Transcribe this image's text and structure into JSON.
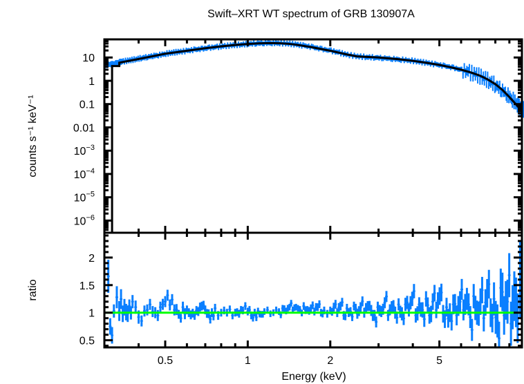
{
  "chart_data": [
    {
      "type": "line",
      "panel": "top",
      "title": "Swift–XRT WT spectrum of GRB 130907A",
      "xlabel": "",
      "ylabel": "counts s⁻¹ keV⁻¹",
      "xscale": "log",
      "yscale": "log",
      "xlim": [
        0.3,
        10
      ],
      "ylim": [
        3e-07,
        60
      ],
      "yticks": [
        {
          "value": 10,
          "label": "10"
        },
        {
          "value": 1,
          "label": "1"
        },
        {
          "value": 0.1,
          "label": "0.1"
        },
        {
          "value": 0.01,
          "label": "0.01"
        },
        {
          "value": 0.001,
          "label": "10−3"
        },
        {
          "value": 0.0001,
          "label": "10−4"
        },
        {
          "value": 1e-05,
          "label": "10−5"
        },
        {
          "value": 1e-06,
          "label": "10−6"
        }
      ],
      "series": [
        {
          "name": "data",
          "color": "#0a7fff",
          "style": "error-bars",
          "points": [
            [
              0.3,
              4.6
            ],
            [
              0.31,
              5.0
            ],
            [
              0.32,
              5.2
            ],
            [
              0.33,
              5.6
            ],
            [
              0.34,
              6.3
            ],
            [
              0.35,
              6.8
            ],
            [
              0.37,
              7.6
            ],
            [
              0.39,
              8.5
            ],
            [
              0.41,
              9.6
            ],
            [
              0.43,
              10.5
            ],
            [
              0.45,
              11.8
            ],
            [
              0.47,
              12.6
            ],
            [
              0.5,
              14.5
            ],
            [
              0.53,
              16.3
            ],
            [
              0.56,
              17.5
            ],
            [
              0.6,
              19.5
            ],
            [
              0.64,
              21.8
            ],
            [
              0.68,
              23.5
            ],
            [
              0.72,
              26
            ],
            [
              0.77,
              28.5
            ],
            [
              0.82,
              31
            ],
            [
              0.88,
              34
            ],
            [
              0.94,
              36
            ],
            [
              1.0,
              38
            ],
            [
              1.07,
              40.5
            ],
            [
              1.14,
              41.5
            ],
            [
              1.22,
              42
            ],
            [
              1.3,
              41.5
            ],
            [
              1.4,
              39.5
            ],
            [
              1.5,
              36
            ],
            [
              1.6,
              32
            ],
            [
              1.72,
              27.5
            ],
            [
              1.85,
              23
            ],
            [
              2.0,
              19.5
            ],
            [
              2.15,
              16
            ],
            [
              2.3,
              13
            ],
            [
              2.5,
              11.2
            ],
            [
              2.7,
              10.4
            ],
            [
              2.9,
              10
            ],
            [
              3.1,
              9.5
            ],
            [
              3.35,
              8.8
            ],
            [
              3.6,
              8.1
            ],
            [
              3.9,
              7.4
            ],
            [
              4.2,
              6.6
            ],
            [
              4.5,
              5.8
            ],
            [
              4.85,
              5.0
            ],
            [
              5.2,
              4.3
            ],
            [
              5.6,
              3.6
            ],
            [
              6.0,
              2.9
            ],
            [
              6.4,
              2.3
            ],
            [
              6.8,
              1.8
            ],
            [
              7.2,
              1.35
            ],
            [
              7.6,
              0.95
            ],
            [
              8.0,
              0.65
            ],
            [
              8.4,
              0.42
            ],
            [
              8.8,
              0.26
            ],
            [
              9.2,
              0.16
            ],
            [
              9.6,
              0.095
            ],
            [
              9.9,
              0.06
            ]
          ]
        },
        {
          "name": "model",
          "color": "#000000",
          "style": "step-line",
          "points": [
            [
              0.32,
              3e-07
            ],
            [
              0.32,
              4.3
            ],
            [
              0.34,
              4.3
            ],
            [
              0.34,
              6.0
            ],
            [
              0.4,
              8.6
            ],
            [
              0.5,
              14.5
            ],
            [
              0.6,
              19.5
            ],
            [
              0.7,
              25
            ],
            [
              0.8,
              30
            ],
            [
              0.9,
              34.5
            ],
            [
              1.0,
              38
            ],
            [
              1.1,
              40.5
            ],
            [
              1.2,
              41.5
            ],
            [
              1.3,
              41
            ],
            [
              1.4,
              39
            ],
            [
              1.5,
              35.5
            ],
            [
              1.7,
              28
            ],
            [
              2.0,
              19.5
            ],
            [
              2.3,
              13.5
            ],
            [
              2.5,
              11.2
            ],
            [
              3.0,
              10
            ],
            [
              3.5,
              8.6
            ],
            [
              4.0,
              7.2
            ],
            [
              4.5,
              5.9
            ],
            [
              5.0,
              4.8
            ],
            [
              5.5,
              3.8
            ],
            [
              6.0,
              3.0
            ],
            [
              6.5,
              2.3
            ],
            [
              7.0,
              1.7
            ],
            [
              7.5,
              1.15
            ],
            [
              8.0,
              0.72
            ],
            [
              8.5,
              0.4
            ],
            [
              9.0,
              0.2
            ],
            [
              9.5,
              0.1
            ],
            [
              10.0,
              0.05
            ]
          ]
        }
      ]
    },
    {
      "type": "scatter",
      "panel": "bottom",
      "xlabel": "Energy (keV)",
      "ylabel": "ratio",
      "xscale": "log",
      "yscale": "linear",
      "xlim": [
        0.3,
        10
      ],
      "ylim": [
        0.37,
        2.45
      ],
      "xticks": [
        {
          "value": 0.5,
          "label": "0.5"
        },
        {
          "value": 1,
          "label": "1"
        },
        {
          "value": 2,
          "label": "2"
        },
        {
          "value": 5,
          "label": "5"
        }
      ],
      "yticks": [
        {
          "value": 2,
          "label": "2"
        },
        {
          "value": 1.5,
          "label": "1.5"
        },
        {
          "value": 1,
          "label": "1"
        },
        {
          "value": 0.5,
          "label": "0.5"
        }
      ],
      "reference_line": {
        "value": 1,
        "color": "#00ff00"
      },
      "series": [
        {
          "name": "ratio",
          "color": "#0a7fff",
          "points": [
            [
              0.31,
              1.66,
              0.3
            ],
            [
              0.315,
              0.75,
              0.15
            ],
            [
              0.325,
              1.03,
              0.12
            ],
            [
              0.333,
              1.28,
              0.2
            ],
            [
              0.34,
              1.03,
              0.18
            ],
            [
              0.35,
              0.98,
              0.15
            ],
            [
              0.36,
              1.01,
              0.15
            ],
            [
              0.37,
              1.12,
              0.12
            ],
            [
              0.38,
              1.2,
              0.12
            ],
            [
              0.39,
              1.1,
              0.12
            ],
            [
              0.4,
              0.92,
              0.12
            ],
            [
              0.41,
              0.85,
              0.1
            ],
            [
              0.42,
              1.03,
              0.1
            ],
            [
              0.43,
              1.05,
              0.1
            ],
            [
              0.44,
              1.15,
              0.1
            ],
            [
              0.45,
              1.02,
              0.1
            ],
            [
              0.46,
              1.0,
              0.1
            ],
            [
              0.48,
              1.1,
              0.1
            ],
            [
              0.5,
              1.2,
              0.1
            ],
            [
              0.52,
              1.14,
              0.1
            ],
            [
              0.54,
              1.05,
              0.1
            ],
            [
              0.56,
              0.97,
              0.08
            ],
            [
              0.58,
              1.1,
              0.1
            ],
            [
              0.6,
              1.05,
              0.08
            ],
            [
              0.62,
              0.96,
              0.08
            ],
            [
              0.64,
              0.95,
              0.08
            ],
            [
              0.66,
              1.02,
              0.08
            ],
            [
              0.68,
              1.12,
              0.08
            ],
            [
              0.7,
              1.05,
              0.08
            ],
            [
              0.72,
              0.98,
              0.08
            ],
            [
              0.74,
              1.0,
              0.08
            ],
            [
              0.76,
              1.08,
              0.08
            ],
            [
              0.78,
              0.95,
              0.08
            ],
            [
              0.8,
              1.0,
              0.07
            ],
            [
              0.82,
              1.04,
              0.07
            ],
            [
              0.84,
              1.0,
              0.07
            ],
            [
              0.86,
              1.06,
              0.07
            ],
            [
              0.88,
              0.95,
              0.07
            ],
            [
              0.9,
              1.0,
              0.07
            ],
            [
              0.93,
              0.98,
              0.07
            ],
            [
              0.96,
              1.04,
              0.07
            ],
            [
              1.0,
              1.02,
              0.07
            ],
            [
              1.03,
              0.95,
              0.07
            ],
            [
              1.06,
              1.0,
              0.07
            ],
            [
              1.09,
              1.03,
              0.06
            ],
            [
              1.12,
              0.97,
              0.06
            ],
            [
              1.15,
              1.02,
              0.06
            ],
            [
              1.18,
              1.05,
              0.06
            ],
            [
              1.21,
              0.98,
              0.06
            ],
            [
              1.24,
              1.0,
              0.06
            ],
            [
              1.27,
              1.05,
              0.06
            ],
            [
              1.3,
              1.02,
              0.06
            ],
            [
              1.34,
              1.08,
              0.06
            ],
            [
              1.38,
              1.03,
              0.06
            ],
            [
              1.42,
              1.1,
              0.06
            ],
            [
              1.46,
              1.05,
              0.06
            ],
            [
              1.5,
              1.1,
              0.06
            ],
            [
              1.55,
              1.06,
              0.06
            ],
            [
              1.6,
              1.12,
              0.07
            ],
            [
              1.65,
              1.05,
              0.07
            ],
            [
              1.7,
              1.08,
              0.07
            ],
            [
              1.75,
              1.02,
              0.07
            ],
            [
              1.8,
              1.1,
              0.07
            ],
            [
              1.85,
              1.0,
              0.07
            ],
            [
              1.9,
              1.04,
              0.07
            ],
            [
              1.95,
              0.98,
              0.07
            ],
            [
              2.0,
              1.04,
              0.07
            ],
            [
              2.06,
              1.1,
              0.08
            ],
            [
              2.12,
              1.0,
              0.08
            ],
            [
              2.18,
              1.12,
              0.08
            ],
            [
              2.24,
              0.95,
              0.08
            ],
            [
              2.3,
              1.08,
              0.08
            ],
            [
              2.37,
              1.02,
              0.08
            ],
            [
              2.44,
              1.12,
              0.08
            ],
            [
              2.51,
              0.98,
              0.09
            ],
            [
              2.58,
              1.1,
              0.09
            ],
            [
              2.66,
              1.0,
              0.09
            ],
            [
              2.74,
              1.12,
              0.09
            ],
            [
              2.82,
              1.04,
              0.1
            ],
            [
              2.9,
              0.95,
              0.1
            ],
            [
              2.98,
              1.1,
              0.1
            ],
            [
              3.07,
              1.02,
              0.1
            ],
            [
              3.16,
              1.18,
              0.1
            ],
            [
              3.25,
              0.95,
              0.1
            ],
            [
              3.35,
              1.1,
              0.11
            ],
            [
              3.45,
              1.0,
              0.11
            ],
            [
              3.55,
              1.15,
              0.11
            ],
            [
              3.65,
              0.98,
              0.12
            ],
            [
              3.76,
              1.15,
              0.12
            ],
            [
              3.87,
              1.05,
              0.12
            ],
            [
              3.98,
              1.25,
              0.13
            ],
            [
              4.1,
              0.95,
              0.13
            ],
            [
              4.22,
              1.15,
              0.13
            ],
            [
              4.34,
              1.05,
              0.14
            ],
            [
              4.47,
              1.25,
              0.14
            ],
            [
              4.6,
              0.95,
              0.15
            ],
            [
              4.73,
              1.2,
              0.15
            ],
            [
              4.87,
              1.05,
              0.15
            ],
            [
              5.01,
              1.3,
              0.16
            ],
            [
              5.16,
              0.98,
              0.16
            ],
            [
              5.31,
              1.1,
              0.17
            ],
            [
              5.46,
              1.0,
              0.17
            ],
            [
              5.62,
              1.15,
              0.18
            ],
            [
              5.78,
              0.95,
              0.18
            ],
            [
              5.95,
              1.2,
              0.19
            ],
            [
              6.12,
              1.05,
              0.19
            ],
            [
              6.3,
              1.25,
              0.2
            ],
            [
              6.48,
              0.92,
              0.2
            ],
            [
              6.67,
              1.3,
              0.22
            ],
            [
              6.86,
              1.0,
              0.22
            ],
            [
              7.06,
              1.2,
              0.24
            ],
            [
              7.26,
              0.9,
              0.24
            ],
            [
              7.47,
              1.35,
              0.26
            ],
            [
              7.69,
              1.0,
              0.26
            ],
            [
              7.91,
              1.25,
              0.3
            ],
            [
              8.14,
              0.85,
              0.3
            ],
            [
              8.37,
              1.45,
              0.35
            ],
            [
              8.61,
              0.95,
              0.35
            ],
            [
              8.86,
              1.2,
              0.4
            ],
            [
              9.12,
              0.8,
              0.4
            ],
            [
              9.38,
              1.3,
              0.45
            ],
            [
              9.65,
              0.9,
              0.45
            ],
            [
              9.85,
              1.6,
              0.7
            ]
          ]
        }
      ]
    }
  ]
}
